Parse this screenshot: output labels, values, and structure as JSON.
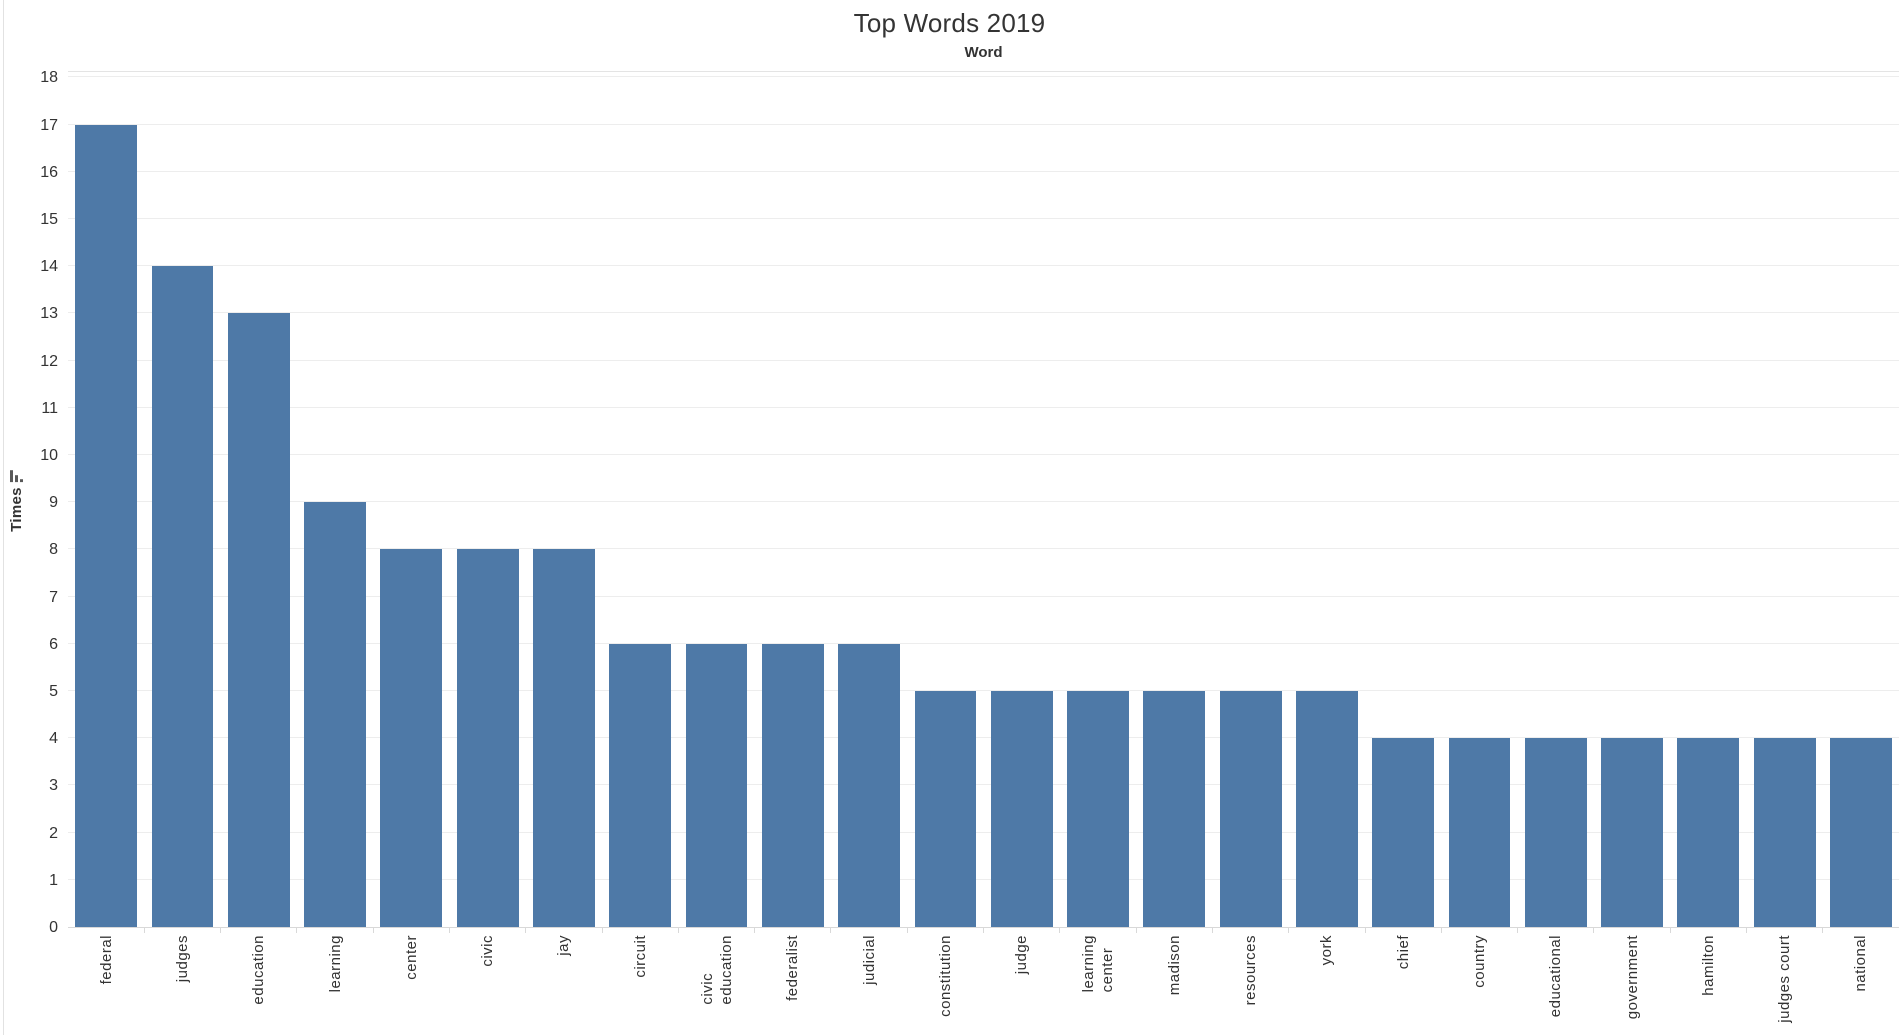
{
  "title": "Top Words 2019",
  "colors": {
    "bar": "#4e79a7",
    "gridline": "#ededed",
    "text": "#333333",
    "axis_line": "#d8d8d8"
  },
  "icons": {
    "y_axis_sort": "sort-descending-icon"
  },
  "chart_data": {
    "type": "bar",
    "title": "Top Words 2019",
    "xlabel": "Word",
    "ylabel": "Times",
    "ylim": [
      0,
      18
    ],
    "y_ticks": [
      0,
      1,
      2,
      3,
      4,
      5,
      6,
      7,
      8,
      9,
      10,
      11,
      12,
      13,
      14,
      15,
      16,
      17,
      18
    ],
    "grid": true,
    "legend": "none",
    "bar_color": "#4e79a7",
    "categories": [
      "federal",
      "judges",
      "education",
      "learning",
      "center",
      "civic",
      "jay",
      "circuit",
      "civic\neducation",
      "federalist",
      "judicial",
      "constitution",
      "judge",
      "learning\ncenter",
      "madison",
      "resources",
      "york",
      "chief",
      "country",
      "educational",
      "government",
      "hamilton",
      "judges court",
      "national"
    ],
    "values": [
      17,
      14,
      13,
      9,
      8,
      8,
      8,
      6,
      6,
      6,
      6,
      5,
      5,
      5,
      5,
      5,
      5,
      4,
      4,
      4,
      4,
      4,
      4,
      4
    ]
  }
}
